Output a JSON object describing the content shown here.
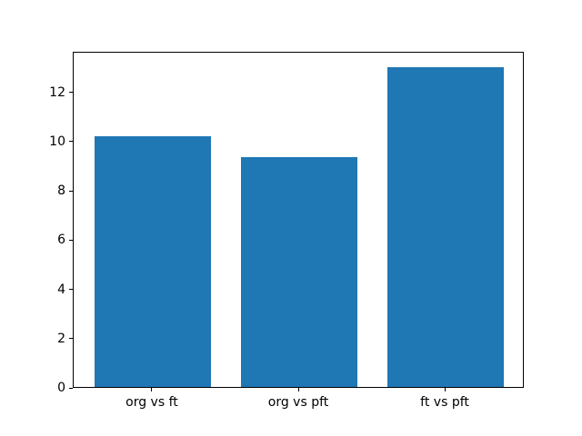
{
  "chart_data": {
    "type": "bar",
    "categories": [
      "org vs ft",
      "org vs pft",
      "ft vs pft"
    ],
    "values": [
      10.2,
      9.35,
      13.0
    ],
    "title": "",
    "xlabel": "",
    "ylabel": "",
    "ylim": [
      0,
      13.65
    ],
    "xlim": [
      -0.54,
      2.54
    ],
    "yticks": [
      0,
      2,
      4,
      6,
      8,
      10,
      12
    ],
    "bar_width": 0.8,
    "bar_color": "#1f77b4",
    "axes_color": "#000000",
    "background_color": "#ffffff",
    "grid": false,
    "legend": null
  }
}
